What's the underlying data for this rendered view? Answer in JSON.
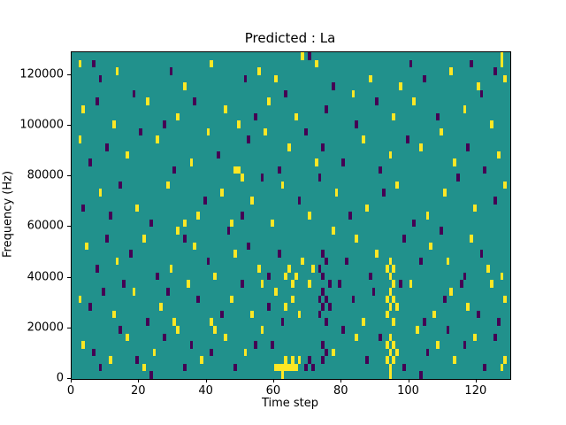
{
  "figure": {
    "background": "#ffffff"
  },
  "chart_data": {
    "type": "heatmap",
    "title": "Predicted : La",
    "xlabel": "Time step",
    "ylabel": "Frequency (Hz)",
    "x_range": [
      0,
      130
    ],
    "y_range": [
      0,
      129000
    ],
    "grid_cols": 130,
    "grid_rows": 43,
    "row_height_hz": 3000,
    "x_ticks": [
      0,
      20,
      40,
      60,
      80,
      100,
      120
    ],
    "y_ticks": [
      0,
      20000,
      40000,
      60000,
      80000,
      100000,
      120000
    ],
    "grid": false,
    "legend": false,
    "colormap": {
      "name": "viridis-ternary",
      "mid_color": "#21918c",
      "high_color": "#fde725",
      "low_color": "#440154"
    },
    "cells": {
      "high": [
        [
          2,
          41
        ],
        [
          41,
          41
        ],
        [
          55,
          40
        ],
        [
          68,
          42
        ],
        [
          72,
          41
        ],
        [
          112,
          40
        ],
        [
          127,
          42
        ],
        [
          127,
          41
        ],
        [
          128,
          39
        ],
        [
          120,
          38
        ],
        [
          88,
          39
        ],
        [
          60,
          39
        ],
        [
          33,
          38
        ],
        [
          97,
          38
        ],
        [
          13,
          40
        ],
        [
          3,
          35
        ],
        [
          22,
          36
        ],
        [
          31,
          34
        ],
        [
          45,
          35
        ],
        [
          58,
          36
        ],
        [
          66,
          34
        ],
        [
          83,
          37
        ],
        [
          95,
          34
        ],
        [
          101,
          36
        ],
        [
          116,
          35
        ],
        [
          124,
          33
        ],
        [
          49,
          33
        ],
        [
          12,
          33
        ],
        [
          2,
          31
        ],
        [
          16,
          29
        ],
        [
          25,
          31
        ],
        [
          35,
          28
        ],
        [
          48,
          27
        ],
        [
          49,
          27
        ],
        [
          50,
          26
        ],
        [
          64,
          30
        ],
        [
          72,
          28
        ],
        [
          86,
          31
        ],
        [
          94,
          29
        ],
        [
          103,
          30
        ],
        [
          113,
          28
        ],
        [
          126,
          29
        ],
        [
          40,
          32
        ],
        [
          57,
          32
        ],
        [
          109,
          32
        ],
        [
          8,
          24
        ],
        [
          19,
          22
        ],
        [
          28,
          25
        ],
        [
          37,
          21
        ],
        [
          44,
          24
        ],
        [
          47,
          20
        ],
        [
          53,
          23
        ],
        [
          62,
          25
        ],
        [
          70,
          21
        ],
        [
          78,
          24
        ],
        [
          87,
          22
        ],
        [
          96,
          25
        ],
        [
          105,
          21
        ],
        [
          110,
          24
        ],
        [
          119,
          22
        ],
        [
          128,
          25
        ],
        [
          33,
          20
        ],
        [
          59,
          20
        ],
        [
          4,
          17
        ],
        [
          13,
          15
        ],
        [
          21,
          18
        ],
        [
          29,
          14
        ],
        [
          36,
          17
        ],
        [
          42,
          13
        ],
        [
          48,
          16
        ],
        [
          55,
          14
        ],
        [
          63,
          13
        ],
        [
          64,
          14
        ],
        [
          65,
          12
        ],
        [
          66,
          13
        ],
        [
          68,
          15
        ],
        [
          71,
          14
        ],
        [
          93,
          14
        ],
        [
          94,
          13
        ],
        [
          94,
          15
        ],
        [
          95,
          12
        ],
        [
          95,
          14
        ],
        [
          106,
          17
        ],
        [
          111,
          15
        ],
        [
          118,
          18
        ],
        [
          123,
          14
        ],
        [
          127,
          13
        ],
        [
          84,
          18
        ],
        [
          90,
          16
        ],
        [
          31,
          19
        ],
        [
          77,
          19
        ],
        [
          2,
          10
        ],
        [
          12,
          8
        ],
        [
          18,
          11
        ],
        [
          26,
          9
        ],
        [
          34,
          12
        ],
        [
          41,
          7
        ],
        [
          47,
          10
        ],
        [
          53,
          8
        ],
        [
          60,
          11
        ],
        [
          63,
          9
        ],
        [
          65,
          10
        ],
        [
          67,
          8
        ],
        [
          70,
          12
        ],
        [
          93,
          8
        ],
        [
          93,
          10
        ],
        [
          94,
          9
        ],
        [
          94,
          11
        ],
        [
          95,
          7
        ],
        [
          95,
          10
        ],
        [
          96,
          9
        ],
        [
          100,
          12
        ],
        [
          107,
          8
        ],
        [
          112,
          11
        ],
        [
          117,
          9
        ],
        [
          124,
          12
        ],
        [
          128,
          10
        ],
        [
          86,
          7
        ],
        [
          30,
          7
        ],
        [
          56,
          12
        ],
        [
          3,
          4
        ],
        [
          11,
          2
        ],
        [
          16,
          5
        ],
        [
          24,
          3
        ],
        [
          31,
          6
        ],
        [
          38,
          2
        ],
        [
          45,
          5
        ],
        [
          51,
          3
        ],
        [
          60,
          1
        ],
        [
          61,
          1
        ],
        [
          62,
          1
        ],
        [
          63,
          1
        ],
        [
          63,
          2
        ],
        [
          64,
          1
        ],
        [
          65,
          1
        ],
        [
          65,
          2
        ],
        [
          66,
          1
        ],
        [
          67,
          2
        ],
        [
          93,
          2
        ],
        [
          93,
          4
        ],
        [
          94,
          1
        ],
        [
          94,
          3
        ],
        [
          94,
          5
        ],
        [
          95,
          2
        ],
        [
          95,
          4
        ],
        [
          96,
          3
        ],
        [
          102,
          6
        ],
        [
          108,
          4
        ],
        [
          113,
          2
        ],
        [
          119,
          5
        ],
        [
          127,
          1
        ],
        [
          128,
          2
        ],
        [
          84,
          5
        ],
        [
          77,
          3
        ],
        [
          56,
          6
        ],
        [
          21,
          1
        ],
        [
          42,
          6
        ],
        [
          62,
          0
        ],
        [
          94,
          0
        ]
      ],
      "low": [
        [
          6,
          41
        ],
        [
          70,
          42
        ],
        [
          100,
          41
        ],
        [
          118,
          41
        ],
        [
          125,
          40
        ],
        [
          8,
          39
        ],
        [
          51,
          39
        ],
        [
          77,
          38
        ],
        [
          104,
          39
        ],
        [
          29,
          40
        ],
        [
          18,
          37
        ],
        [
          36,
          36
        ],
        [
          54,
          34
        ],
        [
          63,
          37
        ],
        [
          75,
          35
        ],
        [
          90,
          36
        ],
        [
          108,
          34
        ],
        [
          121,
          37
        ],
        [
          27,
          33
        ],
        [
          7,
          36
        ],
        [
          84,
          33
        ],
        [
          5,
          28
        ],
        [
          20,
          32
        ],
        [
          30,
          27
        ],
        [
          43,
          29
        ],
        [
          52,
          31
        ],
        [
          61,
          27
        ],
        [
          69,
          32
        ],
        [
          80,
          28
        ],
        [
          91,
          27
        ],
        [
          99,
          31
        ],
        [
          117,
          30
        ],
        [
          122,
          27
        ],
        [
          10,
          30
        ],
        [
          74,
          30
        ],
        [
          3,
          22
        ],
        [
          14,
          25
        ],
        [
          23,
          20
        ],
        [
          39,
          23
        ],
        [
          50,
          21
        ],
        [
          56,
          26
        ],
        [
          67,
          23
        ],
        [
          73,
          26
        ],
        [
          82,
          21
        ],
        [
          92,
          24
        ],
        [
          101,
          20
        ],
        [
          114,
          26
        ],
        [
          125,
          23
        ],
        [
          11,
          21
        ],
        [
          7,
          14
        ],
        [
          17,
          16
        ],
        [
          25,
          13
        ],
        [
          33,
          18
        ],
        [
          40,
          15
        ],
        [
          46,
          19
        ],
        [
          52,
          17
        ],
        [
          58,
          13
        ],
        [
          73,
          14
        ],
        [
          74,
          13
        ],
        [
          75,
          15
        ],
        [
          76,
          12
        ],
        [
          74,
          16
        ],
        [
          81,
          15
        ],
        [
          88,
          13
        ],
        [
          98,
          18
        ],
        [
          103,
          15
        ],
        [
          109,
          19
        ],
        [
          116,
          13
        ],
        [
          121,
          16
        ],
        [
          10,
          18
        ],
        [
          61,
          16
        ],
        [
          5,
          9
        ],
        [
          15,
          12
        ],
        [
          22,
          7
        ],
        [
          28,
          11
        ],
        [
          37,
          10
        ],
        [
          44,
          8
        ],
        [
          50,
          12
        ],
        [
          58,
          9
        ],
        [
          73,
          8
        ],
        [
          73,
          10
        ],
        [
          74,
          9
        ],
        [
          74,
          11
        ],
        [
          75,
          7
        ],
        [
          75,
          10
        ],
        [
          76,
          9
        ],
        [
          79,
          12
        ],
        [
          83,
          10
        ],
        [
          89,
          11
        ],
        [
          97,
          12
        ],
        [
          104,
          7
        ],
        [
          110,
          10
        ],
        [
          115,
          12
        ],
        [
          120,
          8
        ],
        [
          126,
          7
        ],
        [
          9,
          11
        ],
        [
          62,
          7
        ],
        [
          6,
          3
        ],
        [
          14,
          6
        ],
        [
          19,
          2
        ],
        [
          27,
          5
        ],
        [
          35,
          4
        ],
        [
          41,
          3
        ],
        [
          48,
          1
        ],
        [
          54,
          4
        ],
        [
          69,
          1
        ],
        [
          70,
          2
        ],
        [
          71,
          1
        ],
        [
          74,
          2
        ],
        [
          74,
          4
        ],
        [
          75,
          3
        ],
        [
          80,
          6
        ],
        [
          87,
          2
        ],
        [
          91,
          5
        ],
        [
          98,
          1
        ],
        [
          105,
          3
        ],
        [
          111,
          6
        ],
        [
          116,
          4
        ],
        [
          122,
          1
        ],
        [
          125,
          5
        ],
        [
          8,
          1
        ],
        [
          33,
          1
        ],
        [
          59,
          4
        ],
        [
          23,
          0
        ],
        [
          103,
          0
        ]
      ]
    }
  }
}
